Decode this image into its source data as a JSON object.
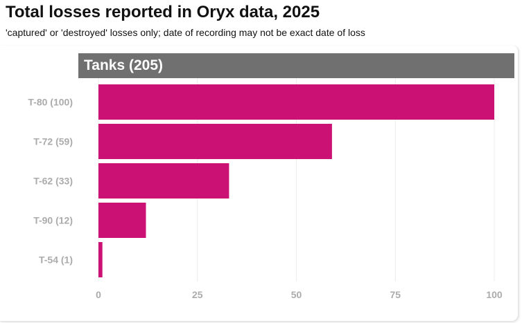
{
  "title": "Total losses reported in Oryx data, 2025",
  "subtitle": "'captured' or 'destroyed' losses only; date of recording may not be exact date of loss",
  "panel": {
    "title": "Tanks (205)"
  },
  "colors": {
    "bar": "#cc1174",
    "header": "#707070",
    "label": "#ababab"
  },
  "chart_data": {
    "type": "bar",
    "orientation": "horizontal",
    "title": "Total losses reported in Oryx data, 2025",
    "subtitle": "'captured' or 'destroyed' losses only; date of recording may not be exact date of loss",
    "panel_title": "Tanks (205)",
    "categories": [
      "T-80 (100)",
      "T-72 (59)",
      "T-62 (33)",
      "T-90 (12)",
      "T-54 (1)"
    ],
    "values": [
      100,
      59,
      33,
      12,
      1
    ],
    "xlim": [
      0,
      100
    ],
    "xticks": [
      0,
      25,
      50,
      75,
      100
    ],
    "xlabel": "",
    "ylabel": "",
    "grid": true
  }
}
